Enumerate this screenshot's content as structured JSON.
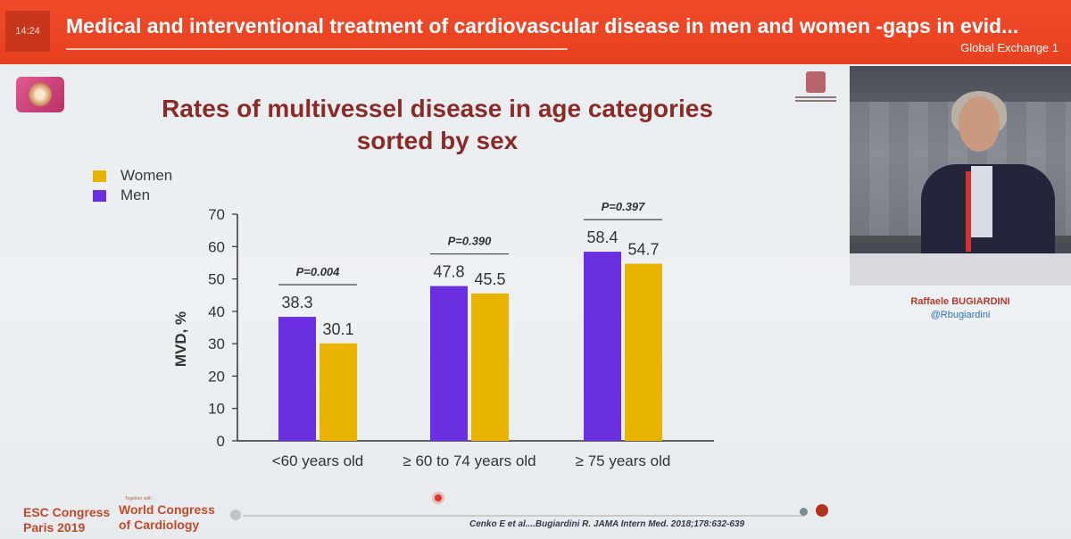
{
  "header": {
    "clock": "14:24",
    "title": "Medical and interventional treatment of cardiovascular disease in men and women -gaps in evid...",
    "session": "Global Exchange 1"
  },
  "slide": {
    "title_line1": "Rates of multivessel disease in age categories",
    "title_line2": "sorted by sex",
    "citation": "Cenko E et al....Bugiardini R. JAMA Intern Med. 2018;178:632-639",
    "footer": {
      "congress_line1": "ESC Congress",
      "congress_line2": "Paris 2019",
      "together_with": "Together with",
      "wcc_line1": "World Congress",
      "wcc_line2": "of Cardiology"
    }
  },
  "speaker": {
    "name": "Raffaele BUGIARDINI",
    "handle": "@Rbugiardini"
  },
  "chart_data": {
    "type": "bar",
    "title": "Rates of multivessel disease in age categories sorted by sex",
    "ylabel": "MVD, %",
    "ylim": [
      0,
      70
    ],
    "yticks": [
      0,
      10,
      20,
      30,
      40,
      50,
      60,
      70
    ],
    "categories": [
      "<60 years old",
      "≥ 60 to 74 years old",
      "≥ 75 years old"
    ],
    "series": [
      {
        "name": "Men",
        "values": [
          38.3,
          47.8,
          58.4
        ],
        "labels": [
          "38.3",
          "47.8",
          "58.4"
        ],
        "color": "#6a2fe0"
      },
      {
        "name": "Women",
        "values": [
          30.1,
          45.5,
          54.7
        ],
        "labels": [
          "30.1",
          "45.5",
          "54.7"
        ],
        "color": "#e8b400"
      }
    ],
    "legend": [
      {
        "name": "Women",
        "color": "#e8b400"
      },
      {
        "name": "Men",
        "color": "#6a2fe0"
      }
    ],
    "legend_position": "top-left",
    "p_values": [
      "P=0.004",
      "P=0.390",
      "P=0.397"
    ],
    "grid": false
  }
}
